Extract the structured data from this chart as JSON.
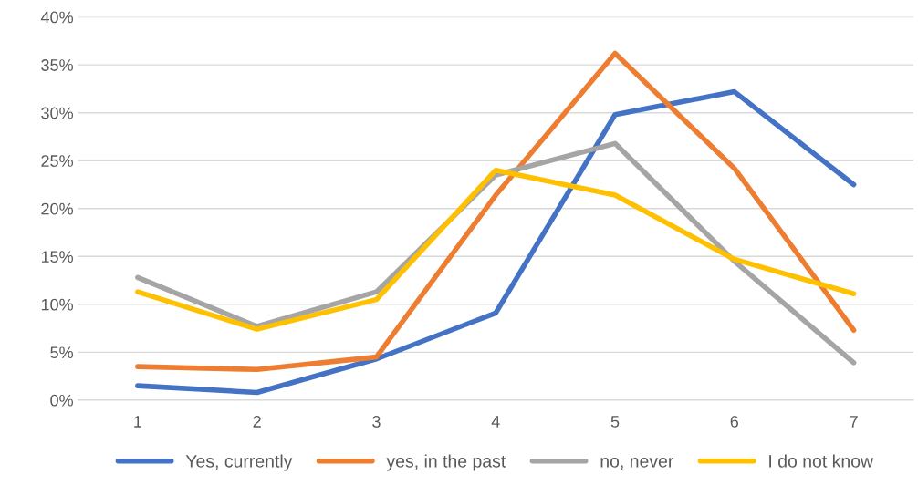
{
  "chart_data": {
    "type": "line",
    "categories": [
      "1",
      "2",
      "3",
      "4",
      "5",
      "6",
      "7"
    ],
    "series": [
      {
        "name": "Yes, currently",
        "color": "#4472c4",
        "values": [
          1.5,
          0.8,
          4.3,
          9.1,
          29.8,
          32.2,
          22.5
        ]
      },
      {
        "name": "yes, in the past",
        "color": "#ed7d31",
        "values": [
          3.5,
          3.2,
          4.5,
          21.4,
          36.2,
          24.2,
          7.3
        ]
      },
      {
        "name": "no, never",
        "color": "#a5a5a5",
        "values": [
          12.8,
          7.7,
          11.3,
          23.5,
          26.8,
          14.5,
          3.9
        ]
      },
      {
        "name": "I do not know",
        "color": "#ffc000",
        "values": [
          11.3,
          7.4,
          10.5,
          24.0,
          21.4,
          14.7,
          11.1
        ]
      }
    ],
    "ylim": [
      0,
      40
    ],
    "yticks": [
      {
        "value": 0,
        "label": "0%"
      },
      {
        "value": 5,
        "label": "5%"
      },
      {
        "value": 10,
        "label": "10%"
      },
      {
        "value": 15,
        "label": "15%"
      },
      {
        "value": 20,
        "label": "20%"
      },
      {
        "value": 25,
        "label": "25%"
      },
      {
        "value": 30,
        "label": "30%"
      },
      {
        "value": 35,
        "label": "35%"
      },
      {
        "value": 40,
        "label": "40%"
      }
    ],
    "grid": "y",
    "legend": "bottom",
    "marker": "none",
    "line_style": "solid"
  }
}
